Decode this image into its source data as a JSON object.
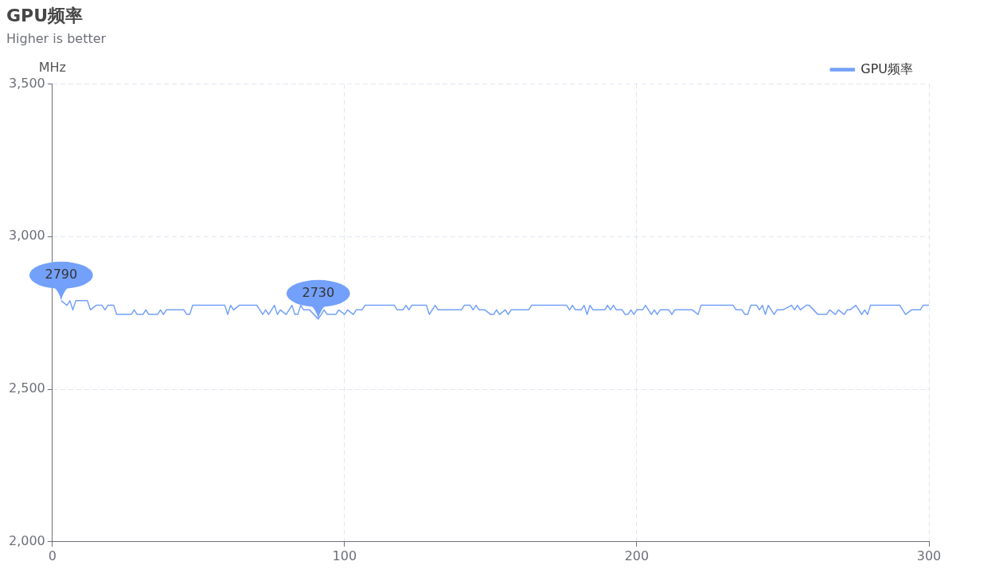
{
  "chart_data": {
    "type": "line",
    "title": "GPU频率",
    "subtitle": "Higher is better",
    "ylabel": "MHz",
    "xlim": [
      0,
      300
    ],
    "xticks": [
      0,
      100,
      200,
      300
    ],
    "ylim": [
      2000,
      3500
    ],
    "yticks": [
      {
        "value": 2000,
        "label": "2,000"
      },
      {
        "value": 2500,
        "label": "2,500"
      },
      {
        "value": 3000,
        "label": "3,000"
      },
      {
        "value": 3500,
        "label": "3,500"
      }
    ],
    "grid": true,
    "legend": "top right",
    "annotations": [
      {
        "text": "2790",
        "x": 3,
        "y": 2790
      },
      {
        "text": "2730",
        "x": 91,
        "y": 2730
      }
    ],
    "series": [
      {
        "name": "GPU频率",
        "color": "#73a0fa",
        "x": [
          3,
          5,
          6,
          7,
          8,
          12,
          13,
          15,
          17,
          18,
          19,
          21,
          22,
          27,
          28,
          29,
          31,
          32,
          33,
          36,
          37,
          38,
          39,
          45,
          46,
          47,
          48,
          59,
          60,
          61,
          62,
          64,
          70,
          72,
          73,
          74,
          76,
          77,
          78,
          80,
          82,
          83,
          84,
          85,
          86,
          88,
          91,
          93,
          94,
          97,
          98,
          100,
          101,
          103,
          104,
          106,
          107,
          117,
          118,
          120,
          121,
          122,
          123,
          128,
          129,
          131,
          132,
          140,
          141,
          143,
          144,
          145,
          146,
          148,
          150,
          151,
          152,
          153,
          155,
          156,
          157,
          163,
          164,
          176,
          177,
          178,
          179,
          181,
          182,
          183,
          184,
          185,
          189,
          190,
          191,
          192,
          193,
          195,
          196,
          197,
          198,
          199,
          200,
          202,
          203,
          205,
          206,
          207,
          208,
          211,
          212,
          213,
          219,
          221,
          222,
          233,
          234,
          236,
          237,
          238,
          239,
          241,
          242,
          243,
          244,
          245,
          247,
          248,
          250,
          253,
          254,
          255,
          256,
          258,
          259,
          262,
          265,
          266,
          268,
          269,
          271,
          272,
          273,
          275,
          277,
          278,
          279,
          280,
          290,
          292,
          294,
          297,
          298,
          300
        ],
        "values": [
          2790,
          2775,
          2790,
          2760,
          2790,
          2790,
          2760,
          2775,
          2775,
          2760,
          2775,
          2775,
          2745,
          2745,
          2760,
          2745,
          2745,
          2760,
          2745,
          2745,
          2760,
          2745,
          2760,
          2760,
          2745,
          2745,
          2775,
          2775,
          2745,
          2775,
          2760,
          2775,
          2775,
          2745,
          2760,
          2745,
          2775,
          2745,
          2760,
          2745,
          2775,
          2745,
          2745,
          2775,
          2760,
          2760,
          2730,
          2760,
          2745,
          2745,
          2760,
          2745,
          2760,
          2745,
          2760,
          2760,
          2775,
          2775,
          2760,
          2760,
          2775,
          2760,
          2775,
          2775,
          2745,
          2775,
          2760,
          2760,
          2775,
          2775,
          2760,
          2775,
          2760,
          2760,
          2745,
          2745,
          2760,
          2745,
          2760,
          2745,
          2760,
          2760,
          2775,
          2775,
          2760,
          2775,
          2760,
          2760,
          2775,
          2745,
          2775,
          2760,
          2760,
          2775,
          2760,
          2775,
          2760,
          2760,
          2745,
          2745,
          2760,
          2745,
          2760,
          2760,
          2775,
          2745,
          2760,
          2745,
          2760,
          2760,
          2745,
          2760,
          2760,
          2745,
          2775,
          2775,
          2760,
          2760,
          2745,
          2745,
          2775,
          2775,
          2760,
          2775,
          2745,
          2775,
          2745,
          2760,
          2760,
          2775,
          2760,
          2775,
          2760,
          2775,
          2775,
          2745,
          2745,
          2760,
          2745,
          2760,
          2745,
          2760,
          2760,
          2775,
          2745,
          2760,
          2745,
          2775,
          2775,
          2745,
          2760,
          2760,
          2775,
          2775
        ]
      }
    ]
  }
}
